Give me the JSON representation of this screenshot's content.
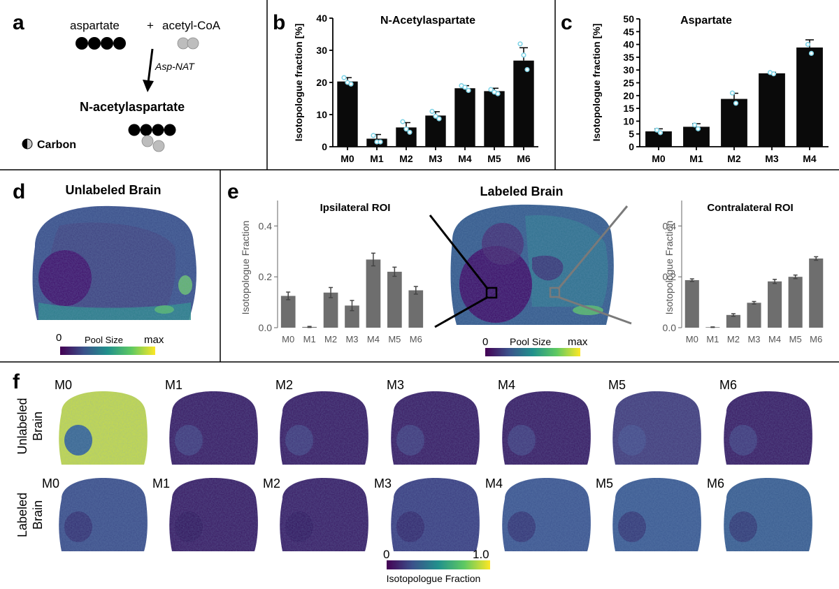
{
  "panels": {
    "a": {
      "letter": "a",
      "aspartate": "aspartate",
      "plus": "+",
      "acetylcoa": "acetyl-CoA",
      "enzyme": "Asp-NAT",
      "product": "N-acetylaspartate",
      "legend_label": "Carbon"
    },
    "b": {
      "letter": "b"
    },
    "c": {
      "letter": "c"
    },
    "d": {
      "letter": "d",
      "title": "Unlabeled Brain",
      "colorbar_min": "0",
      "colorbar_label": "Pool Size",
      "colorbar_max": "max"
    },
    "e": {
      "letter": "e",
      "title": "Labeled Brain",
      "colorbar_min": "0",
      "colorbar_label": "Pool Size",
      "colorbar_max": "max"
    },
    "f": {
      "letter": "f",
      "row_labels": [
        "Unlabeled\nBrain",
        "Labeled\nBrain"
      ],
      "row1_line1": "Unlabeled",
      "row1_line2": "Brain",
      "row2_line1": "Labeled",
      "row2_line2": "Brain",
      "isotopologues": [
        "M0",
        "M1",
        "M2",
        "M3",
        "M4",
        "M5",
        "M6"
      ],
      "colorbar_min": "0",
      "colorbar_max": "1.0",
      "colorbar_label": "Isotopologue Fraction"
    }
  },
  "colors": {
    "bar_black": "#0a0a0a",
    "bar_gray": "#6e6e6e",
    "dot_cyan": "#7fd3e6",
    "viridis": [
      "#440154",
      "#3b528b",
      "#21918c",
      "#5ec962",
      "#fde725"
    ]
  },
  "chart_data": [
    {
      "id": "b",
      "type": "bar",
      "title": "N-Acetylaspartate",
      "ylabel": "Isotopologue fraction [%]",
      "xlabel": "",
      "categories": [
        "M0",
        "M1",
        "M2",
        "M3",
        "M4",
        "M5",
        "M6"
      ],
      "values": [
        20.3,
        2.5,
        6.0,
        9.7,
        18.2,
        17.3,
        26.8
      ],
      "errors": [
        1.2,
        1.3,
        1.5,
        1.2,
        0.8,
        0.9,
        4.0
      ],
      "points": [
        [
          21.5,
          20.0,
          19.5
        ],
        [
          3.5,
          1.5,
          1.5
        ],
        [
          7.8,
          5.5,
          4.5
        ],
        [
          11.0,
          9.5,
          8.7
        ],
        [
          19.0,
          18.5,
          17.5
        ],
        [
          17.8,
          17.0,
          16.5
        ],
        [
          32.0,
          28.5,
          24.0
        ]
      ],
      "yticks": [
        0,
        10,
        20,
        30,
        40
      ],
      "ylim": [
        0,
        40
      ]
    },
    {
      "id": "c",
      "type": "bar",
      "title": "Aspartate",
      "ylabel": "Isotopologue fraction [%]",
      "xlabel": "",
      "categories": [
        "M0",
        "M1",
        "M2",
        "M3",
        "M4"
      ],
      "values": [
        6.0,
        7.8,
        18.7,
        28.7,
        38.8
      ],
      "errors": [
        1.0,
        1.2,
        2.2,
        0.4,
        3.0
      ],
      "points": [
        [
          6.5,
          5.5
        ],
        [
          8.5,
          7.0
        ],
        [
          21.0,
          17.0
        ],
        [
          29.0,
          28.5
        ],
        [
          40.0,
          36.5
        ]
      ],
      "yticks": [
        0,
        5,
        10,
        15,
        20,
        25,
        30,
        35,
        40,
        45,
        50
      ],
      "ylim": [
        0,
        50
      ]
    },
    {
      "id": "e-ipsi",
      "type": "bar",
      "title": "Ipsilateral ROI",
      "ylabel": "Isotopologue Fraction",
      "xlabel": "",
      "categories": [
        "M0",
        "M1",
        "M2",
        "M3",
        "M4",
        "M5",
        "M6"
      ],
      "values": [
        0.125,
        0.003,
        0.138,
        0.087,
        0.268,
        0.22,
        0.147
      ],
      "errors": [
        0.015,
        0.002,
        0.02,
        0.02,
        0.025,
        0.018,
        0.015
      ],
      "yticks": [
        0.0,
        0.2,
        0.4
      ],
      "ylim": [
        0,
        0.5
      ]
    },
    {
      "id": "e-contra",
      "type": "bar",
      "title": "Contralateral ROI",
      "ylabel": "Isotopologue Fraction",
      "xlabel": "",
      "categories": [
        "M0",
        "M1",
        "M2",
        "M3",
        "M4",
        "M5",
        "M6"
      ],
      "values": [
        0.187,
        0.002,
        0.05,
        0.098,
        0.182,
        0.2,
        0.272
      ],
      "errors": [
        0.005,
        0.001,
        0.005,
        0.005,
        0.008,
        0.007,
        0.007
      ],
      "yticks": [
        0.0,
        0.2,
        0.4
      ],
      "ylim": [
        0,
        0.5
      ]
    }
  ]
}
